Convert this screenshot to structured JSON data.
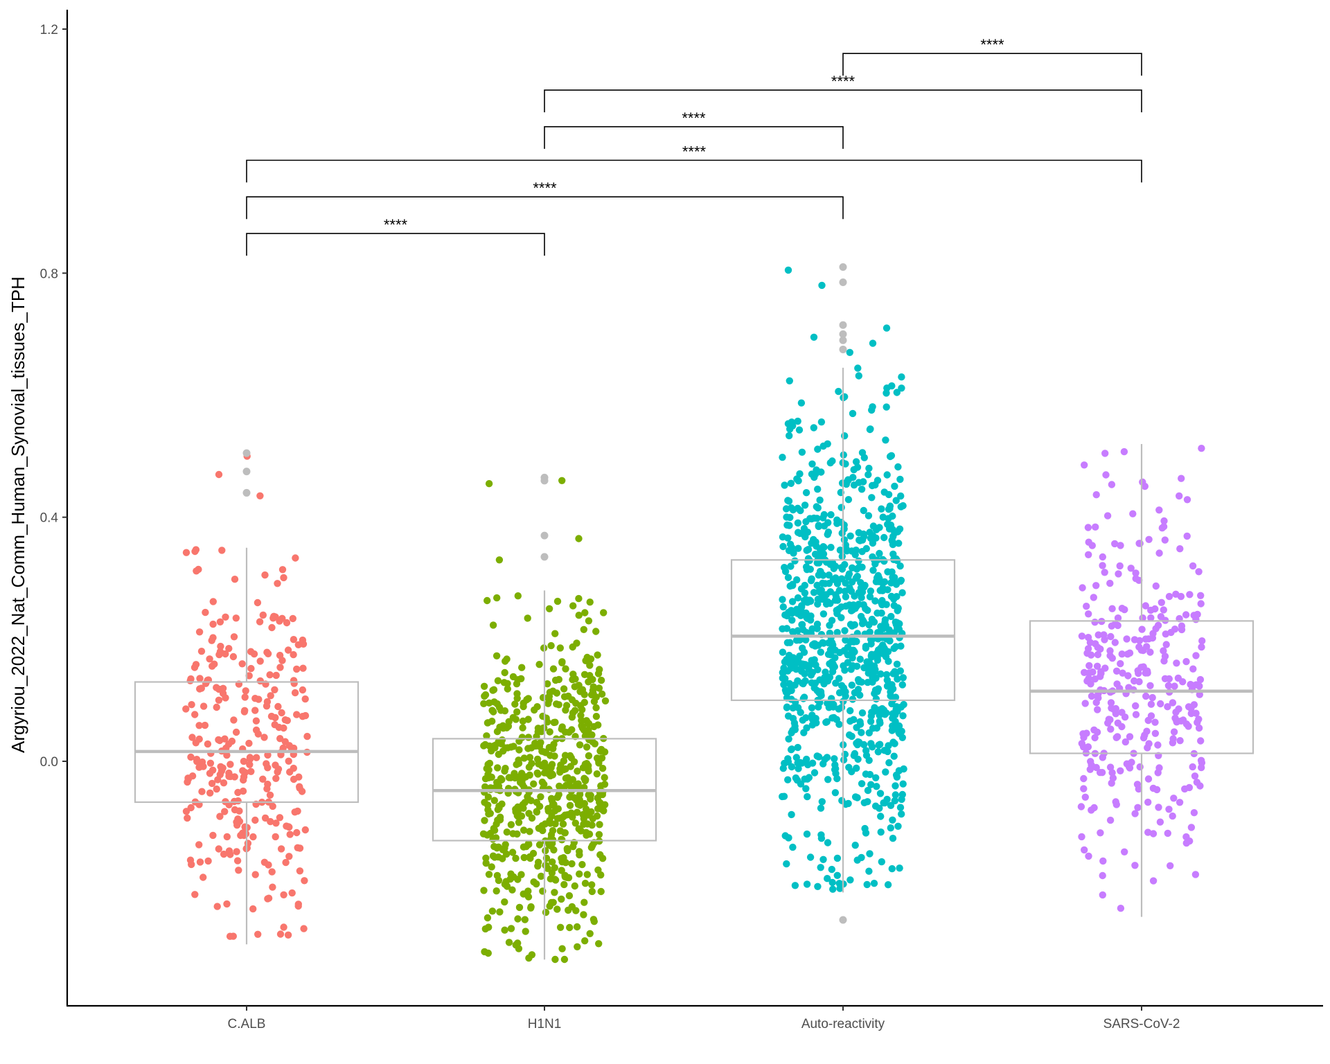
{
  "chart_data": {
    "type": "box",
    "title": "",
    "xlabel": "",
    "ylabel": "Argyriou_2022_Nat_Comm_Human_Synovial_tissues_TPH",
    "ylim": [
      -0.4,
      1.22
    ],
    "yticks": [
      0.0,
      0.4,
      0.8,
      1.2
    ],
    "ytick_labels": [
      "0.0",
      "0.4",
      "0.8",
      "1.2"
    ],
    "legend": "none",
    "grid": false,
    "categories": [
      "C.ALB",
      "H1N1",
      "Auto-reactivity",
      "SARS-CoV-2"
    ],
    "point_colors": [
      "#F8766D",
      "#7CAE00",
      "#00BFC4",
      "#C77CFF"
    ],
    "box_color": "#bdbdbd",
    "outlier_color": "#bdbdbd",
    "boxes": [
      {
        "category": "C.ALB",
        "q1": -0.067,
        "median": 0.016,
        "q3": 0.13,
        "whisker_low": -0.3,
        "whisker_high": 0.35,
        "n_points": 300,
        "outliers": [
          0.505,
          0.475,
          0.44
        ]
      },
      {
        "category": "H1N1",
        "q1": -0.13,
        "median": -0.048,
        "q3": 0.037,
        "whisker_low": -0.325,
        "whisker_high": 0.28,
        "n_points": 620,
        "outliers": [
          0.465,
          0.46,
          0.37,
          0.335
        ]
      },
      {
        "category": "Auto-reactivity",
        "q1": 0.1,
        "median": 0.205,
        "q3": 0.33,
        "whisker_low": -0.215,
        "whisker_high": 0.645,
        "n_points": 900,
        "outliers": [
          0.81,
          0.785,
          0.715,
          0.7,
          0.69,
          0.675,
          -0.26
        ]
      },
      {
        "category": "SARS-CoV-2",
        "q1": 0.013,
        "median": 0.115,
        "q3": 0.23,
        "whisker_low": -0.255,
        "whisker_high": 0.52,
        "n_points": 330,
        "outliers": []
      }
    ],
    "significance": [
      {
        "from": "C.ALB",
        "to": "H1N1",
        "y": 0.865,
        "label": "****"
      },
      {
        "from": "C.ALB",
        "to": "Auto-reactivity",
        "y": 0.925,
        "label": "****"
      },
      {
        "from": "C.ALB",
        "to": "SARS-CoV-2",
        "y": 0.985,
        "label": "****"
      },
      {
        "from": "H1N1",
        "to": "Auto-reactivity",
        "y": 1.04,
        "label": "****"
      },
      {
        "from": "H1N1",
        "to": "SARS-CoV-2",
        "y": 1.1,
        "label": "****"
      },
      {
        "from": "Auto-reactivity",
        "to": "SARS-CoV-2",
        "y": 1.16,
        "label": "****"
      }
    ]
  }
}
